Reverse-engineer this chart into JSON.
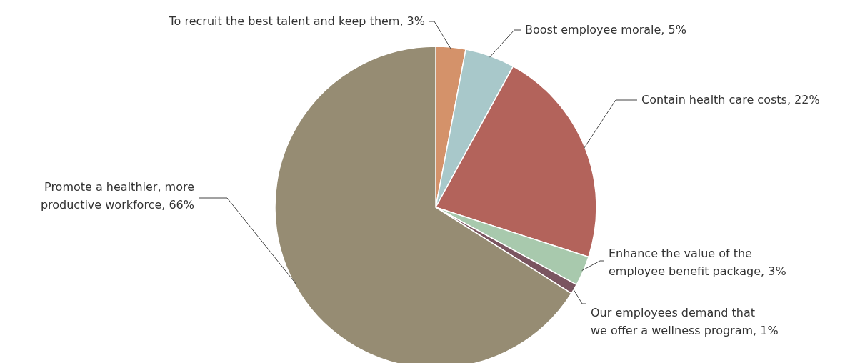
{
  "chart_data": {
    "type": "pie",
    "categories": [
      "To recruit the best talent and keep them",
      "Boost employee morale",
      "Contain health care costs",
      "Enhance the value of the employee benefit package",
      "Our employees demand that we offer a wellness program",
      "Promote a healthier, more productive workforce"
    ],
    "values": [
      3,
      5,
      22,
      3,
      1,
      66
    ],
    "value_labels": [
      "3%",
      "5%",
      "22%",
      "3%",
      "1%",
      "66%"
    ],
    "colors": [
      "#d4926a",
      "#a8c8ca",
      "#b3635b",
      "#a8c9ad",
      "#7a5560",
      "#968c73"
    ]
  }
}
